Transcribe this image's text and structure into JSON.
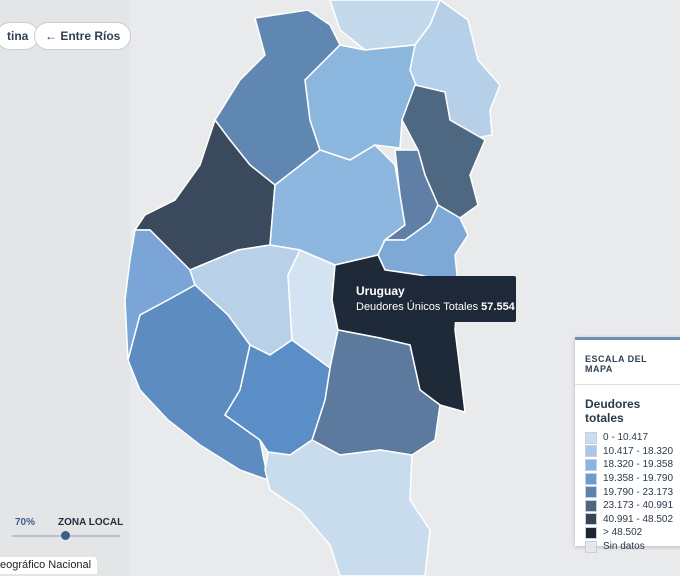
{
  "breadcrumbs": {
    "country": "tina",
    "province": "← Entre Ríos"
  },
  "tooltip": {
    "title": "Uruguay",
    "label": "Deudores Únicos Totales",
    "value": "57.554"
  },
  "legend": {
    "heading": "ESCALA DEL MAPA",
    "title": "Deudores totales",
    "items": [
      {
        "label": "0 - 10.417",
        "color": "#c9ddf0"
      },
      {
        "label": "10.417 - 18.320",
        "color": "#a9c9e8"
      },
      {
        "label": "18.320 - 19.358",
        "color": "#8ab4de"
      },
      {
        "label": "19.358 - 19.790",
        "color": "#6c9ccf"
      },
      {
        "label": "19.790 - 23.173",
        "color": "#5784b3"
      },
      {
        "label": "23.173 - 40.991",
        "color": "#4c6784"
      },
      {
        "label": "40.991 - 48.502",
        "color": "#364556"
      },
      {
        "label": "> 48.502",
        "color": "#1b2533"
      },
      {
        "label": "Sin datos",
        "color": "#e6e7e9"
      }
    ]
  },
  "slider": {
    "opacity": "70%",
    "label": "ZONA LOCAL"
  },
  "attribution": "eográfico Nacional"
}
